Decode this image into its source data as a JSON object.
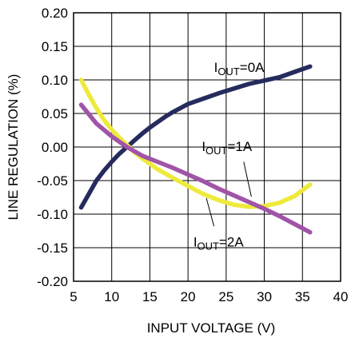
{
  "chart_data": {
    "type": "line",
    "xlabel": "INPUT VOLTAGE (V)",
    "ylabel": "LINE REGULATION  (%)",
    "xlim": [
      5,
      40
    ],
    "ylim": [
      -0.2,
      0.2
    ],
    "x_ticks": [
      "5",
      "10",
      "15",
      "20",
      "25",
      "30",
      "35",
      "40"
    ],
    "y_ticks": [
      "0.20",
      "0.15",
      "0.10",
      "0.05",
      "0.00",
      "-0.05",
      "-0.10",
      "-0.15",
      "-0.20"
    ],
    "grid": true,
    "series": [
      {
        "name": "IOUT=0A",
        "color": "#262b5e",
        "x": [
          6,
          7,
          8,
          9,
          10,
          11,
          12,
          13,
          14,
          15,
          16,
          17,
          18,
          19,
          20,
          22,
          24,
          26,
          28,
          30,
          32,
          34,
          36
        ],
        "y": [
          -0.09,
          -0.07,
          -0.05,
          -0.035,
          -0.022,
          -0.01,
          0.0,
          0.01,
          0.02,
          0.029,
          0.037,
          0.045,
          0.052,
          0.058,
          0.064,
          0.072,
          0.08,
          0.087,
          0.094,
          0.099,
          0.104,
          0.112,
          0.12
        ]
      },
      {
        "name": "IOUT=1A",
        "color": "#a054a7",
        "x": [
          6,
          8,
          10,
          12,
          14,
          16,
          18,
          20,
          22,
          24,
          26,
          28,
          30,
          32,
          34,
          36
        ],
        "y": [
          0.063,
          0.035,
          0.016,
          0.0,
          -0.013,
          -0.022,
          -0.031,
          -0.041,
          -0.051,
          -0.062,
          -0.072,
          -0.082,
          -0.092,
          -0.103,
          -0.115,
          -0.127
        ]
      },
      {
        "name": "IOUT=2A",
        "color": "#eeea3c",
        "x": [
          6,
          7,
          8,
          9,
          10,
          11,
          12,
          13,
          14,
          15,
          16,
          18,
          20,
          22,
          24,
          26,
          28,
          30,
          32,
          34,
          36
        ],
        "y": [
          0.1,
          0.078,
          0.058,
          0.04,
          0.026,
          0.014,
          0.003,
          -0.008,
          -0.017,
          -0.025,
          -0.033,
          -0.046,
          -0.058,
          -0.07,
          -0.079,
          -0.086,
          -0.089,
          -0.088,
          -0.083,
          -0.073,
          -0.056
        ]
      }
    ],
    "annotations": [
      {
        "main": "I",
        "sub": "OUT",
        "rest": "=0A"
      },
      {
        "main": "I",
        "sub": "OUT",
        "rest": "=1A"
      },
      {
        "main": "I",
        "sub": "OUT",
        "rest": "=2A"
      }
    ]
  }
}
